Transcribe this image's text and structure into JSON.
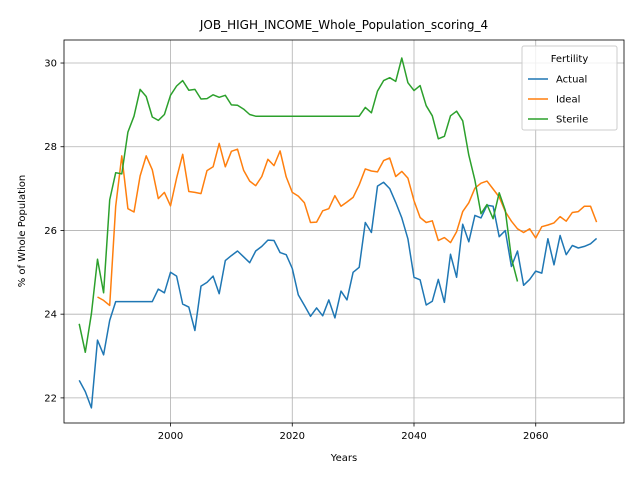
{
  "chart_data": {
    "type": "line",
    "title": "JOB_HIGH_INCOME_Whole_Population_scoring_4",
    "xlabel": "Years",
    "ylabel": "% of Whole Population",
    "xlim": [
      1982.5,
      2074.5
    ],
    "ylim": [
      21.4,
      30.55
    ],
    "xticks": [
      2000,
      2020,
      2040,
      2060
    ],
    "yticks": [
      22,
      24,
      26,
      28,
      30
    ],
    "grid": true,
    "legend": {
      "title": "Fertility",
      "position": "top-right"
    },
    "colors": {
      "Actual": "#1f77b4",
      "Ideal": "#ff7f0e",
      "Sterile": "#2ca02c"
    },
    "series": [
      {
        "name": "Actual",
        "x": [
          1985,
          1986,
          1987,
          1988,
          1989,
          1990,
          1991,
          1992,
          1993,
          1994,
          1995,
          1996,
          1997,
          1998,
          1999,
          2000,
          2001,
          2002,
          2003,
          2004,
          2005,
          2006,
          2007,
          2008,
          2009,
          2010,
          2011,
          2012,
          2013,
          2014,
          2015,
          2016,
          2017,
          2018,
          2019,
          2020,
          2021,
          2022,
          2023,
          2024,
          2025,
          2026,
          2027,
          2028,
          2029,
          2030,
          2031,
          2032,
          2033,
          2034,
          2035,
          2036,
          2037,
          2038,
          2039,
          2040,
          2041,
          2042,
          2043,
          2044,
          2045,
          2046,
          2047,
          2048,
          2049,
          2050,
          2051,
          2052,
          2053,
          2054,
          2055,
          2056,
          2057,
          2058,
          2059,
          2060,
          2061,
          2062,
          2063,
          2064,
          2065,
          2066,
          2067,
          2068,
          2069,
          2070
        ],
        "values": [
          22.42,
          22.15,
          21.76,
          23.38,
          23.03,
          23.85,
          24.3,
          24.3,
          24.3,
          24.3,
          24.3,
          24.3,
          24.3,
          24.6,
          24.51,
          25.0,
          24.91,
          24.24,
          24.17,
          23.61,
          24.67,
          24.76,
          24.91,
          24.49,
          25.28,
          25.4,
          25.51,
          25.37,
          25.23,
          25.51,
          25.62,
          25.77,
          25.76,
          25.47,
          25.42,
          25.09,
          24.46,
          24.21,
          23.95,
          24.15,
          23.96,
          24.34,
          23.91,
          24.55,
          24.34,
          25.0,
          25.12,
          26.19,
          25.95,
          27.06,
          27.15,
          27.0,
          26.67,
          26.3,
          25.8,
          24.88,
          24.82,
          24.22,
          24.31,
          24.83,
          24.28,
          25.43,
          24.88,
          26.15,
          25.73,
          26.36,
          26.3,
          26.6,
          26.58,
          25.85,
          26.0,
          25.14,
          25.51,
          24.69,
          24.83,
          25.03,
          24.98,
          25.8,
          25.18,
          25.88,
          25.42,
          25.64,
          25.58,
          25.62,
          25.68,
          25.81
        ]
      },
      {
        "name": "Ideal",
        "x": [
          1988,
          1989,
          1990,
          1991,
          1992,
          1993,
          1994,
          1995,
          1996,
          1997,
          1998,
          1999,
          2000,
          2001,
          2002,
          2003,
          2004,
          2005,
          2006,
          2007,
          2008,
          2009,
          2010,
          2011,
          2012,
          2013,
          2014,
          2015,
          2016,
          2017,
          2018,
          2019,
          2020,
          2021,
          2022,
          2023,
          2024,
          2025,
          2026,
          2027,
          2028,
          2029,
          2030,
          2031,
          2032,
          2033,
          2034,
          2035,
          2036,
          2037,
          2038,
          2039,
          2040,
          2041,
          2042,
          2043,
          2044,
          2045,
          2046,
          2047,
          2048,
          2049,
          2050,
          2051,
          2052,
          2053,
          2054,
          2055,
          2056,
          2057,
          2058,
          2059,
          2060,
          2061,
          2062,
          2063,
          2064,
          2065,
          2066,
          2067,
          2068,
          2069,
          2070
        ],
        "values": [
          24.41,
          24.33,
          24.21,
          26.58,
          27.78,
          26.52,
          26.44,
          27.3,
          27.78,
          27.45,
          26.76,
          26.91,
          26.59,
          27.25,
          27.82,
          26.93,
          26.91,
          26.88,
          27.43,
          27.52,
          28.08,
          27.52,
          27.89,
          27.94,
          27.44,
          27.18,
          27.07,
          27.29,
          27.7,
          27.55,
          27.9,
          27.28,
          26.91,
          26.82,
          26.66,
          26.19,
          26.2,
          26.47,
          26.52,
          26.83,
          26.58,
          26.68,
          26.79,
          27.09,
          27.47,
          27.42,
          27.4,
          27.67,
          27.73,
          27.29,
          27.41,
          27.25,
          26.71,
          26.31,
          26.19,
          26.23,
          25.76,
          25.83,
          25.71,
          25.97,
          26.45,
          26.66,
          27.01,
          27.13,
          27.18,
          26.99,
          26.8,
          26.45,
          26.22,
          26.04,
          25.95,
          26.04,
          25.82,
          26.09,
          26.13,
          26.18,
          26.33,
          26.22,
          26.43,
          26.45,
          26.58,
          26.58,
          26.2
        ]
      },
      {
        "name": "Sterile",
        "x": [
          1985,
          1986,
          1987,
          1988,
          1989,
          1990,
          1991,
          1992,
          1993,
          1994,
          1995,
          1996,
          1997,
          1998,
          1999,
          2000,
          2001,
          2002,
          2003,
          2004,
          2005,
          2006,
          2007,
          2008,
          2009,
          2010,
          2011,
          2012,
          2013,
          2014,
          2015,
          2016,
          2017,
          2018,
          2019,
          2020,
          2021,
          2022,
          2023,
          2024,
          2025,
          2026,
          2027,
          2028,
          2029,
          2030,
          2031,
          2032,
          2033,
          2034,
          2035,
          2036,
          2037,
          2038,
          2039,
          2040,
          2041,
          2042,
          2043,
          2044,
          2045,
          2046,
          2047,
          2048,
          2049,
          2050,
          2051,
          2052,
          2053,
          2054,
          2055,
          2056,
          2057
        ],
        "values": [
          23.77,
          23.09,
          24.01,
          25.31,
          24.51,
          26.73,
          27.38,
          27.35,
          28.35,
          28.73,
          29.37,
          29.2,
          28.71,
          28.63,
          28.77,
          29.23,
          29.45,
          29.58,
          29.35,
          29.37,
          29.14,
          29.15,
          29.24,
          29.18,
          29.23,
          29.0,
          28.99,
          28.9,
          28.77,
          28.73,
          28.73,
          28.73,
          28.73,
          28.73,
          28.73,
          28.73,
          28.73,
          28.73,
          28.73,
          28.73,
          28.73,
          28.73,
          28.73,
          28.73,
          28.73,
          28.73,
          28.73,
          28.94,
          28.81,
          29.33,
          29.58,
          29.65,
          29.56,
          30.12,
          29.53,
          29.34,
          29.46,
          28.98,
          28.74,
          28.19,
          28.25,
          28.74,
          28.85,
          28.62,
          27.8,
          27.2,
          26.4,
          26.62,
          26.28,
          26.9,
          26.48,
          25.34,
          24.78
        ]
      }
    ]
  }
}
